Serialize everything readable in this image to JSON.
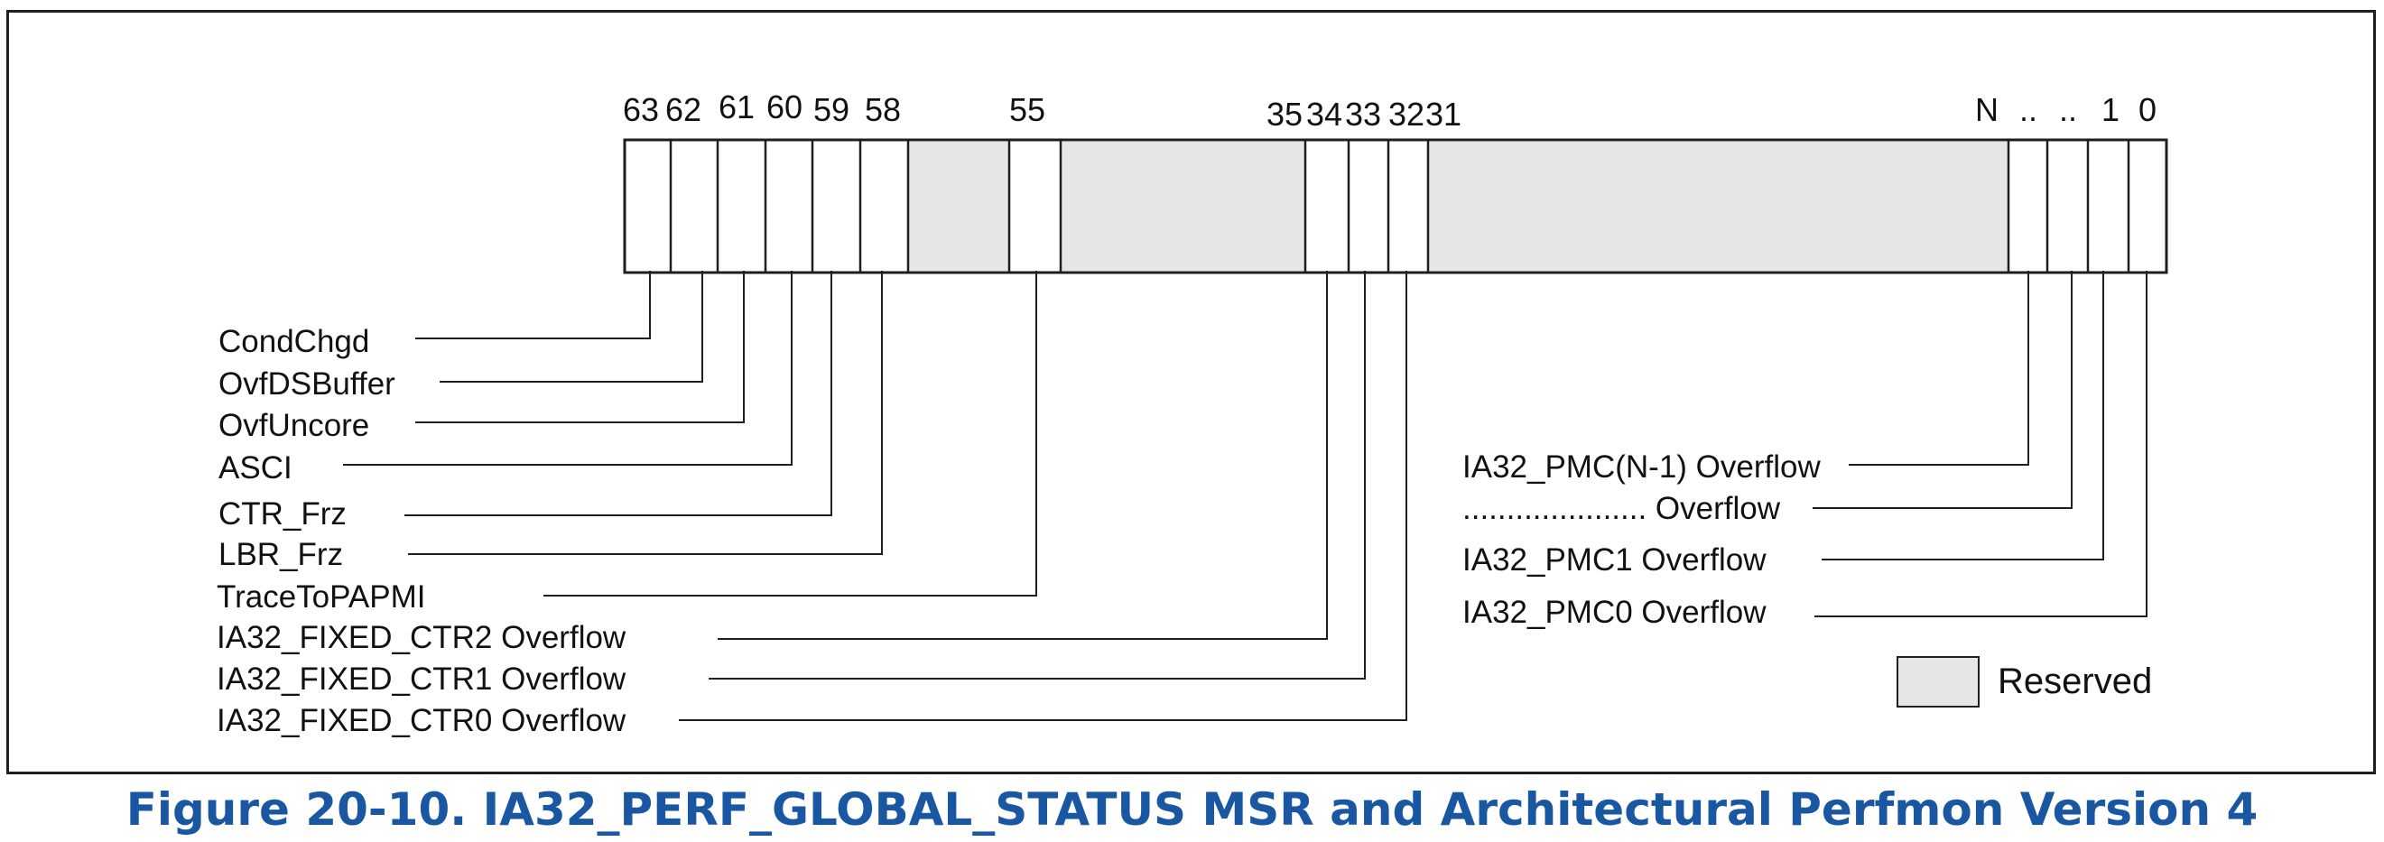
{
  "colors": {
    "reserved": "#e6e6e6",
    "line": "#1f1f1f",
    "caption": "#1a57a3"
  },
  "bit_numbers": {
    "b63": "63",
    "b62": "62",
    "b61": "61",
    "b60": "60",
    "b59": "59",
    "b58": "58",
    "b55": "55",
    "b35": "35",
    "b34": "34",
    "b33": "33",
    "b32": "32",
    "b31": "31",
    "bN": "N",
    "dots1": "..",
    "dots2": "..",
    "b1": "1",
    "b0": "0"
  },
  "labels_left": {
    "cond_chgd": "CondChgd",
    "ovf_ds_buffer": "OvfDSBuffer",
    "ovf_uncore": "OvfUncore",
    "asci": "ASCI",
    "ctr_frz": "CTR_Frz",
    "lbr_frz": "LBR_Frz",
    "trace_to_papmi": "TraceToPAPMI",
    "fixed_ctr2": "IA32_FIXED_CTR2 Overflow",
    "fixed_ctr1": "IA32_FIXED_CTR1 Overflow",
    "fixed_ctr0": "IA32_FIXED_CTR0 Overflow"
  },
  "labels_right": {
    "pmc_n_minus_1": "IA32_PMC(N-1) Overflow",
    "pmc_dots": "..................... Overflow",
    "pmc1": "IA32_PMC1 Overflow",
    "pmc0": "IA32_PMC0 Overflow"
  },
  "legend": {
    "reserved": "Reserved"
  },
  "caption": "Figure 20-10.  IA32_PERF_GLOBAL_STATUS MSR and Architectural Perfmon Version 4"
}
